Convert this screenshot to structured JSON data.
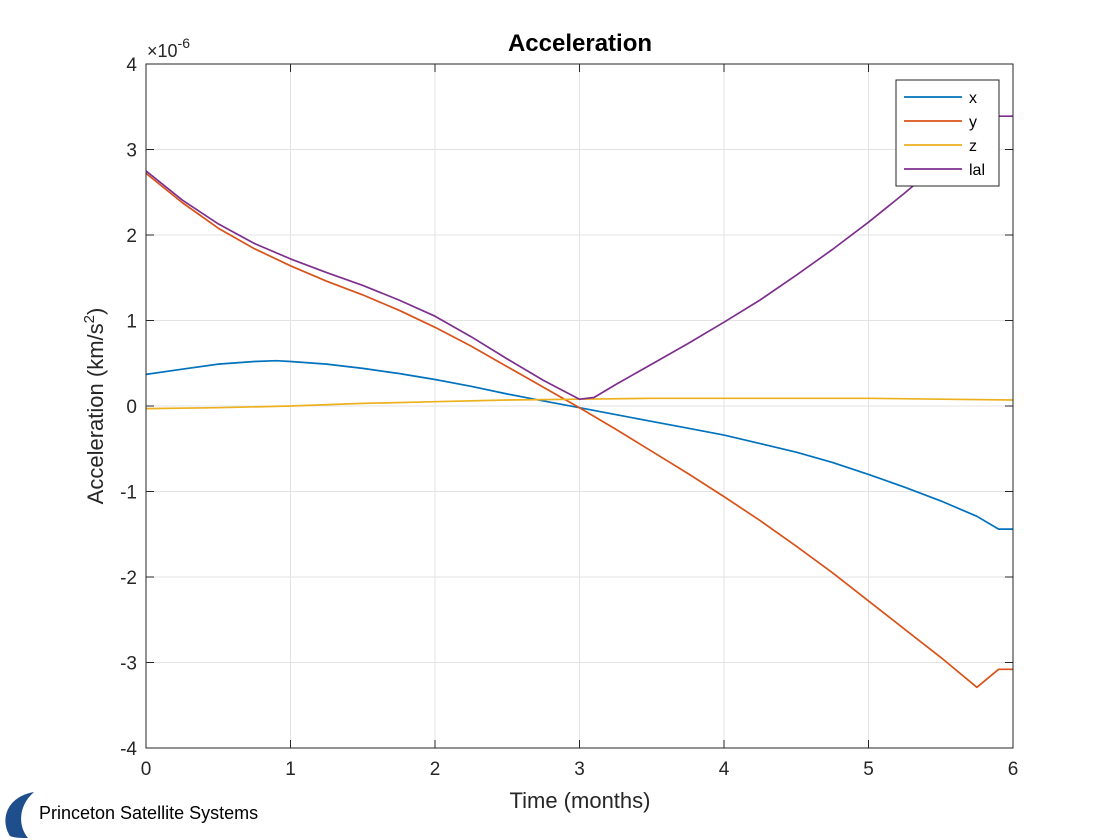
{
  "chart_data": {
    "type": "line",
    "title": "Acceleration",
    "xlabel": "Time (months)",
    "ylabel_main": "Acceleration (km/s",
    "ylabel_sup": "2",
    "ylabel_end": ")",
    "y_exponent_prefix": "×10",
    "y_exponent_power": "-6",
    "xlim": [
      0,
      6
    ],
    "ylim": [
      -4,
      4
    ],
    "x_ticks": [
      0,
      1,
      2,
      3,
      4,
      5,
      6
    ],
    "y_ticks": [
      -4,
      -3,
      -2,
      -1,
      0,
      1,
      2,
      3,
      4
    ],
    "grid": true,
    "legend_position": "top-right",
    "series": [
      {
        "name": "x",
        "color": "#0072BD",
        "x": [
          0,
          0.25,
          0.5,
          0.75,
          0.9,
          1.0,
          1.25,
          1.5,
          1.75,
          2.0,
          2.25,
          2.5,
          2.75,
          3.0,
          3.25,
          3.5,
          3.75,
          4.0,
          4.25,
          4.5,
          4.75,
          5.0,
          5.25,
          5.5,
          5.75,
          5.9,
          6.0
        ],
        "y": [
          0.37,
          0.43,
          0.49,
          0.52,
          0.53,
          0.52,
          0.49,
          0.44,
          0.38,
          0.31,
          0.23,
          0.14,
          0.06,
          -0.02,
          -0.1,
          -0.18,
          -0.26,
          -0.34,
          -0.44,
          -0.54,
          -0.66,
          -0.8,
          -0.95,
          -1.11,
          -1.29,
          -1.44,
          -1.44
        ]
      },
      {
        "name": "y",
        "color": "#D95319",
        "x": [
          0,
          0.25,
          0.5,
          0.75,
          1.0,
          1.25,
          1.5,
          1.75,
          2.0,
          2.25,
          2.5,
          2.75,
          3.0,
          3.25,
          3.5,
          3.75,
          4.0,
          4.25,
          4.5,
          4.75,
          5.0,
          5.25,
          5.5,
          5.75,
          5.9,
          6.0
        ],
        "y": [
          2.72,
          2.38,
          2.08,
          1.84,
          1.64,
          1.46,
          1.3,
          1.12,
          0.92,
          0.7,
          0.46,
          0.22,
          -0.02,
          -0.27,
          -0.53,
          -0.79,
          -1.06,
          -1.34,
          -1.64,
          -1.95,
          -2.28,
          -2.61,
          -2.94,
          -3.29,
          -3.08,
          -3.08
        ]
      },
      {
        "name": "z",
        "color": "#EDB120",
        "x": [
          0,
          0.5,
          1.0,
          1.5,
          2.0,
          2.5,
          3.0,
          3.5,
          4.0,
          4.5,
          5.0,
          5.5,
          6.0
        ],
        "y": [
          -0.03,
          -0.02,
          0.0,
          0.03,
          0.05,
          0.07,
          0.08,
          0.09,
          0.09,
          0.09,
          0.09,
          0.08,
          0.07
        ]
      },
      {
        "name": "lal",
        "color": "#7E2F8E",
        "x": [
          0,
          0.25,
          0.5,
          0.75,
          1.0,
          1.25,
          1.5,
          1.75,
          2.0,
          2.25,
          2.5,
          2.75,
          3.0,
          3.1,
          3.25,
          3.5,
          3.75,
          4.0,
          4.25,
          4.5,
          4.75,
          5.0,
          5.25,
          5.5,
          5.75,
          5.9,
          6.0
        ],
        "y": [
          2.75,
          2.41,
          2.13,
          1.9,
          1.72,
          1.56,
          1.41,
          1.24,
          1.05,
          0.81,
          0.55,
          0.3,
          0.08,
          0.1,
          0.25,
          0.49,
          0.73,
          0.98,
          1.24,
          1.53,
          1.83,
          2.15,
          2.49,
          2.85,
          3.23,
          3.39,
          3.39
        ]
      }
    ]
  },
  "logo": {
    "text": "Princeton Satellite Systems",
    "color": "#1F4E8C"
  }
}
